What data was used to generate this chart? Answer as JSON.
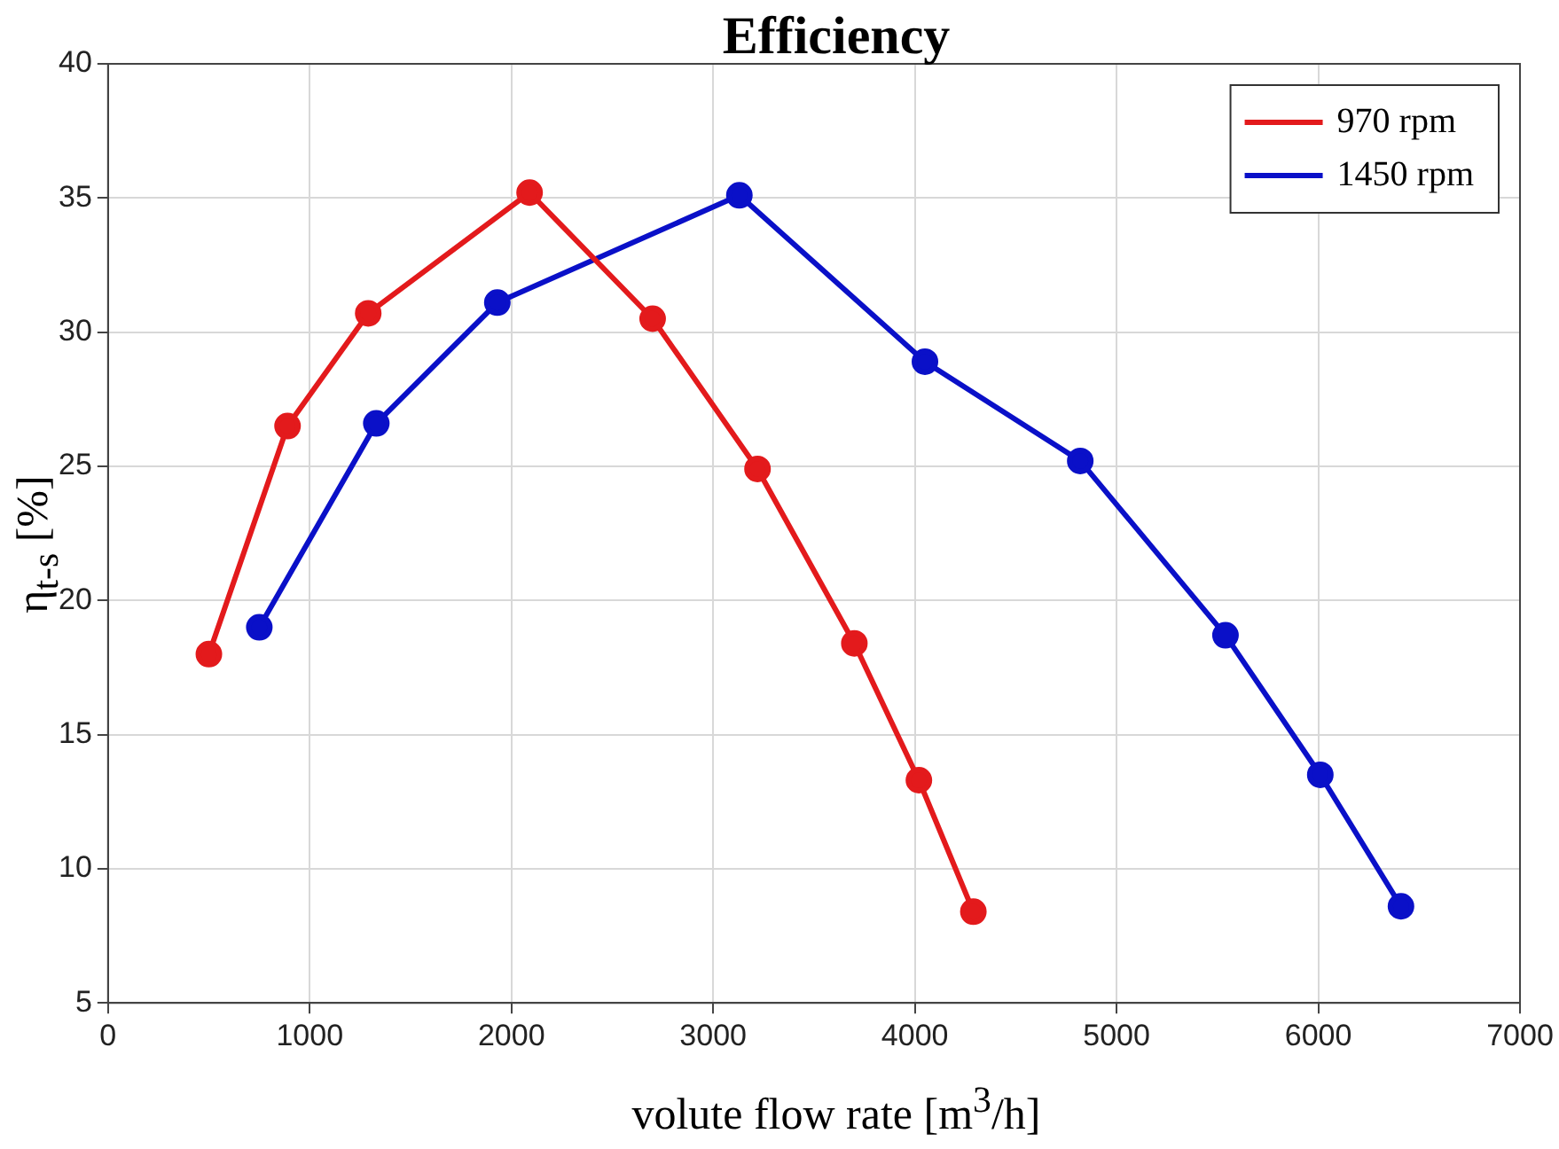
{
  "chart_data": {
    "type": "line",
    "title": "Efficiency",
    "xlabel": "volute flow rate [m$^{3}$/h]",
    "ylabel": "η$_{t-s}$ [%]",
    "series": [
      {
        "name": "970 rpm",
        "color": "#e31a1c",
        "x": [
          500,
          890,
          1290,
          2090,
          2700,
          3220,
          3700,
          4020,
          4290
        ],
        "values": [
          18.0,
          26.5,
          30.7,
          35.2,
          30.5,
          24.9,
          18.4,
          13.3,
          8.4
        ]
      },
      {
        "name": "1450 rpm",
        "color": "#0a10c8",
        "x": [
          750,
          1330,
          1930,
          3130,
          4050,
          4820,
          5540,
          6010,
          6410
        ],
        "values": [
          19.0,
          26.6,
          31.1,
          35.1,
          28.9,
          25.2,
          18.7,
          13.5,
          8.6
        ]
      }
    ],
    "xlim": [
      0,
      7000
    ],
    "xticks": [
      0,
      1000,
      2000,
      3000,
      4000,
      5000,
      6000,
      7000
    ],
    "ylim": [
      5,
      40
    ],
    "yticks": [
      5,
      10,
      15,
      20,
      25,
      30,
      35,
      40
    ],
    "grid": true,
    "legend": "top right",
    "marker": "circle",
    "line_style": "solid"
  }
}
